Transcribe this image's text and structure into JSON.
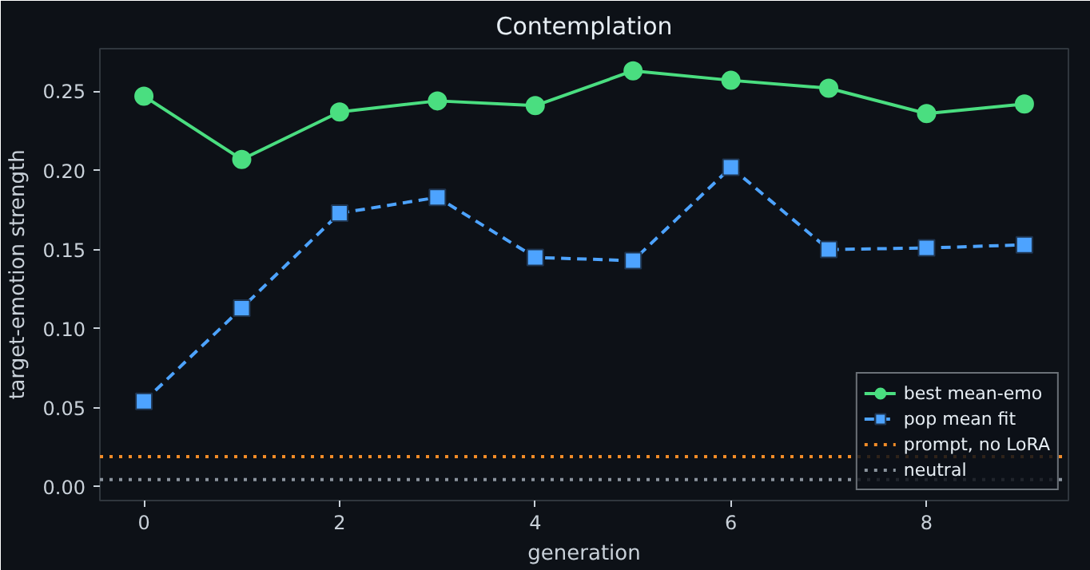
{
  "chart_data": {
    "type": "line",
    "title": "Contemplation",
    "xlabel": "generation",
    "ylabel": "target-emotion strength",
    "x": [
      0,
      1,
      2,
      3,
      4,
      5,
      6,
      7,
      8,
      9
    ],
    "series": [
      {
        "name": "best mean-emo",
        "color": "#4ade80",
        "marker": "circle",
        "line_style": "solid",
        "values": [
          0.247,
          0.207,
          0.237,
          0.244,
          0.241,
          0.263,
          0.257,
          0.252,
          0.236,
          0.242
        ]
      },
      {
        "name": "pop mean fit",
        "color": "#4da3ff",
        "marker": "square",
        "line_style": "dashed",
        "values": [
          0.054,
          0.113,
          0.173,
          0.183,
          0.145,
          0.143,
          0.202,
          0.15,
          0.151,
          0.153
        ]
      }
    ],
    "ref_lines": [
      {
        "axis": "y",
        "value": 0.019,
        "label": "prompt, no LoRA",
        "color": "#f28c28",
        "line_style": "dotted"
      },
      {
        "axis": "y",
        "value": 0.0045,
        "label": "neutral",
        "color": "#8b949e",
        "line_style": "dotted"
      }
    ],
    "xlim": [
      -0.45,
      9.45
    ],
    "ylim": [
      -0.0087,
      0.277
    ],
    "xticks": [
      0,
      2,
      4,
      6,
      8
    ],
    "yticks": [
      {
        "value": 0,
        "label": "0.00"
      },
      {
        "value": 0.05,
        "label": "0.05"
      },
      {
        "value": 0.1,
        "label": "0.10"
      },
      {
        "value": 0.15,
        "label": "0.15"
      },
      {
        "value": 0.2,
        "label": "0.20"
      },
      {
        "value": 0.25,
        "label": "0.25"
      }
    ],
    "grid": false,
    "legend": "bottom right"
  }
}
